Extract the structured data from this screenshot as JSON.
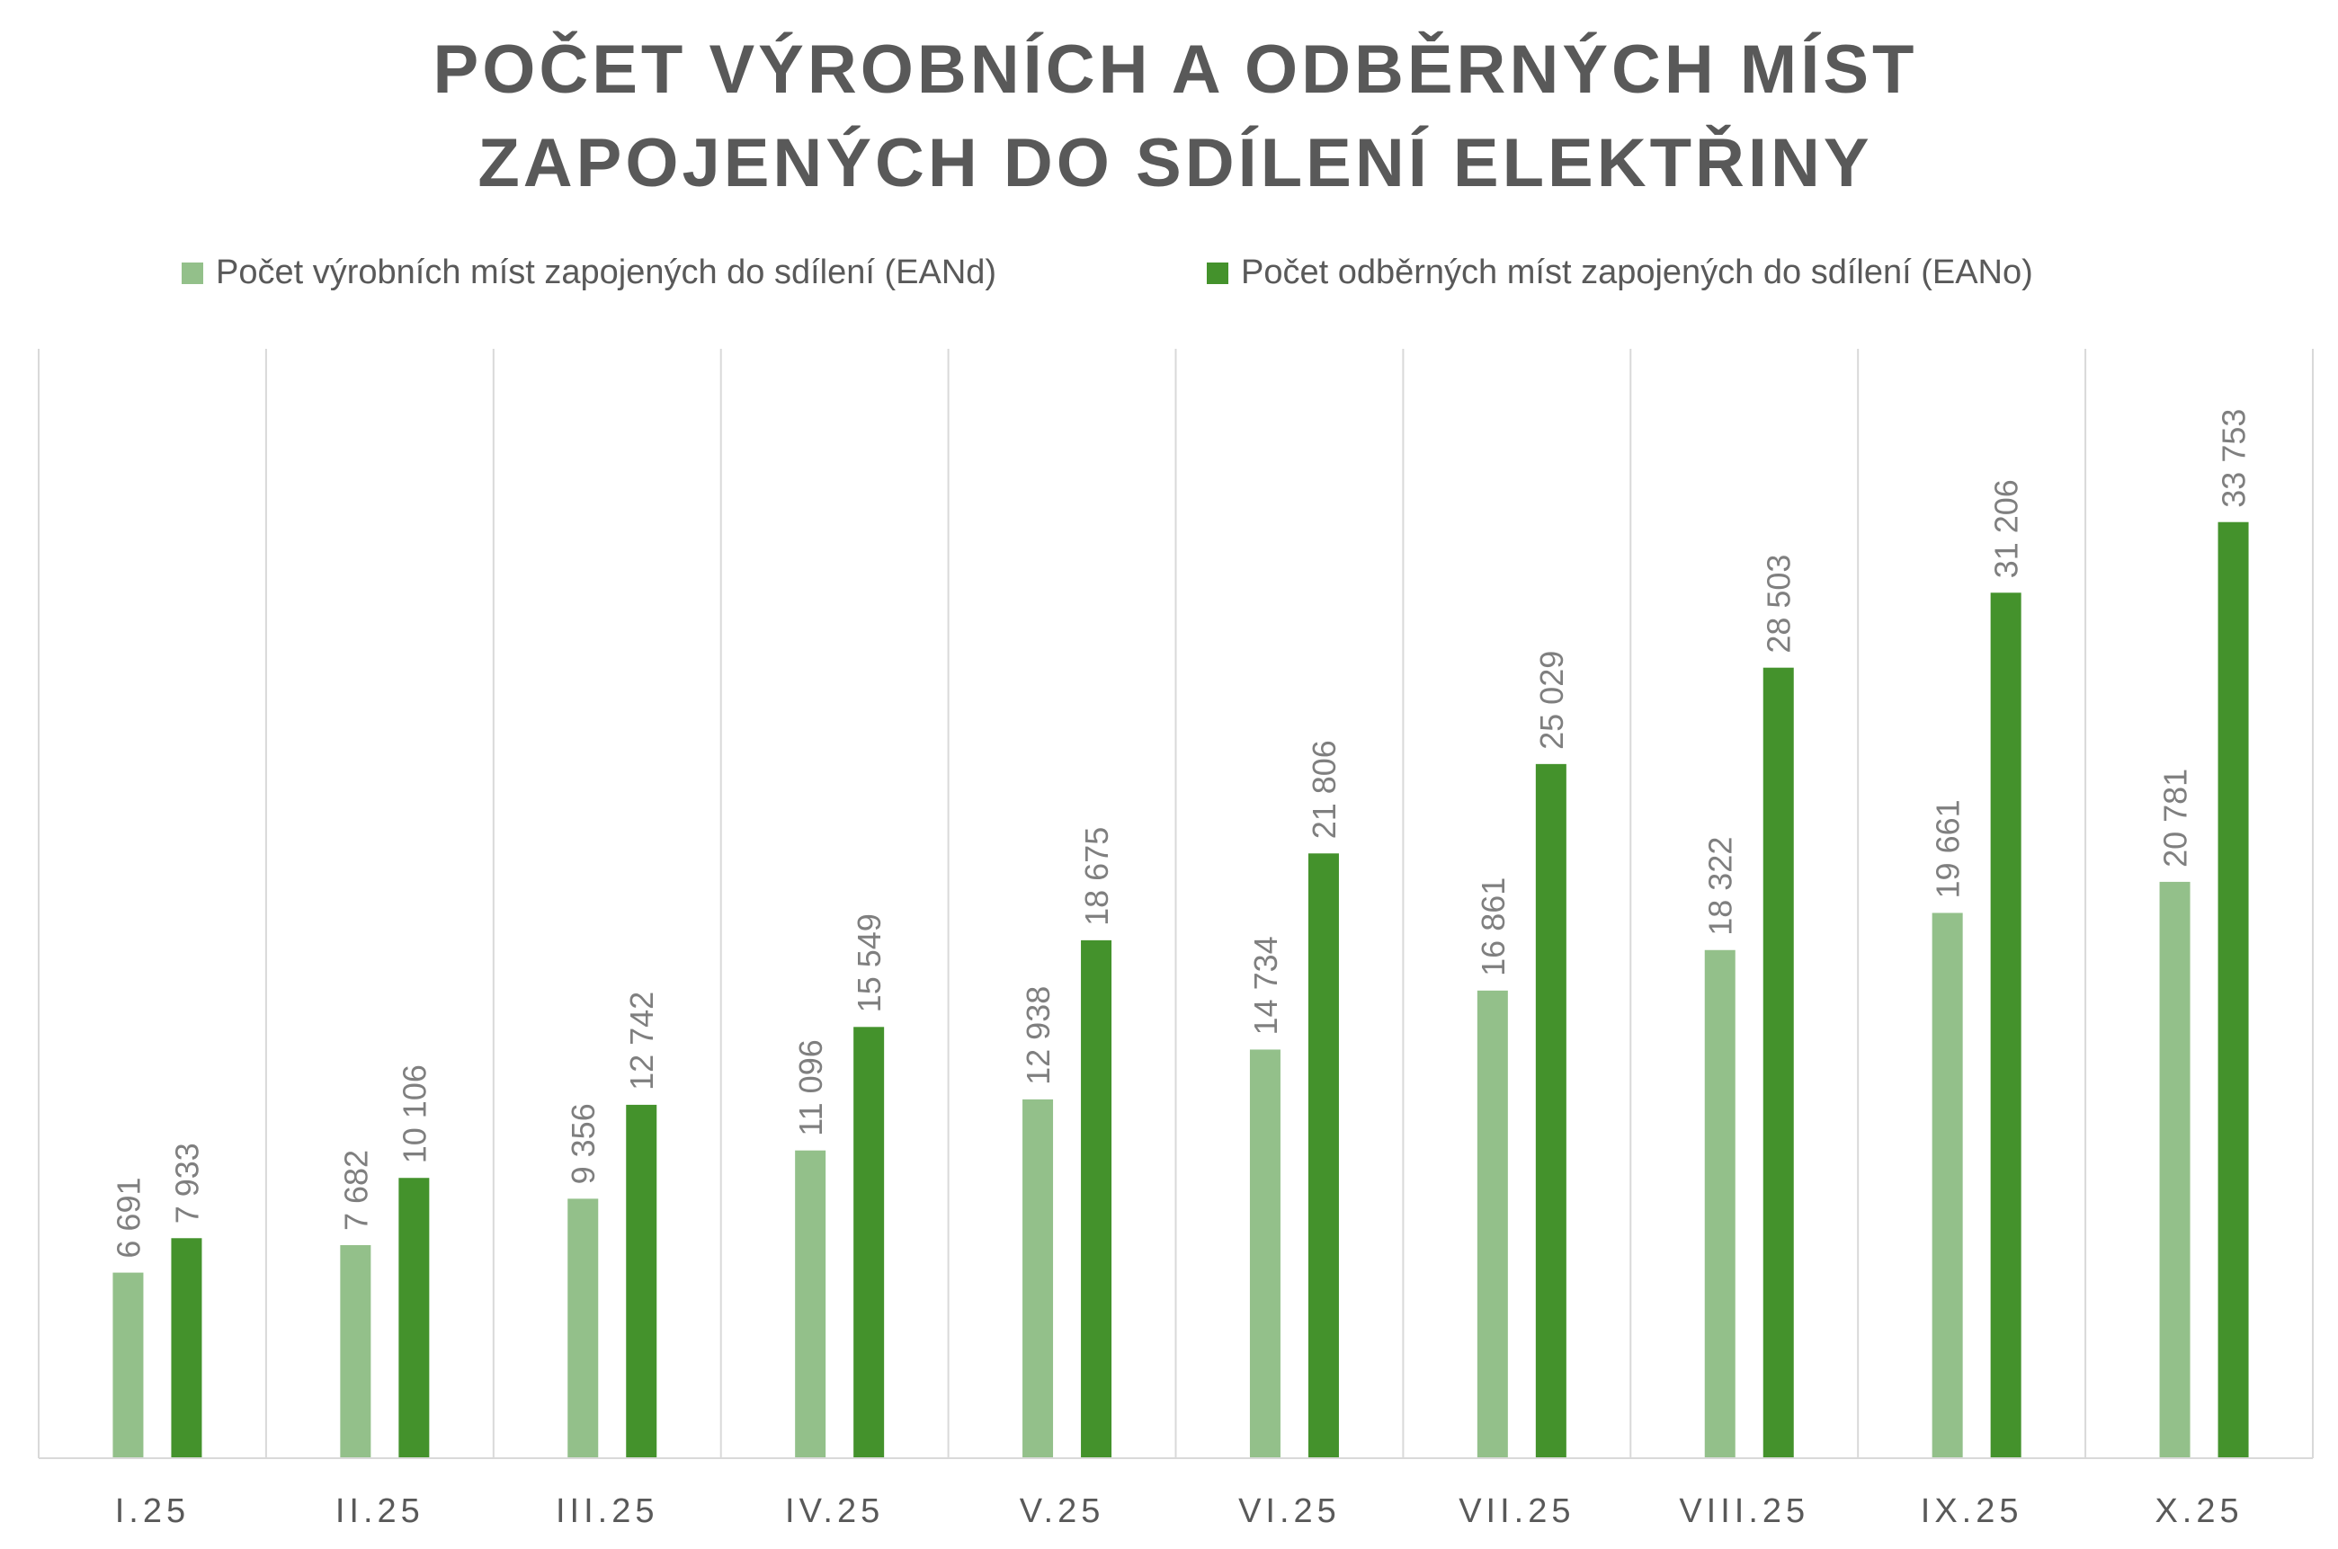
{
  "chart_data": {
    "type": "bar",
    "title_lines": [
      "POČET VÝROBNÍCH A ODBĚRNÝCH MÍST",
      "ZAPOJENÝCH DO SDÍLENÍ ELEKTŘINY"
    ],
    "categories": [
      "I.25",
      "II.25",
      "III.25",
      "IV.25",
      "V.25",
      "VI.25",
      "VII.25",
      "VIII.25",
      "IX.25",
      "X.25"
    ],
    "series": [
      {
        "name": "Počet výrobních míst zapojených do sdílení (EANd)",
        "color": "#93c08a",
        "values": [
          6691,
          7682,
          9356,
          11096,
          12938,
          14734,
          16861,
          18322,
          19661,
          20781
        ],
        "labels": [
          "6 691",
          "7 682",
          "9 356",
          "11 096",
          "12 938",
          "14 734",
          "16 861",
          "18 322",
          "19 661",
          "20 781"
        ]
      },
      {
        "name": "Počet odběrných míst zapojených do sdílení (EANo)",
        "color": "#44922c",
        "values": [
          7933,
          10106,
          12742,
          15549,
          18675,
          21806,
          25029,
          28503,
          31206,
          33753
        ],
        "labels": [
          "7 933",
          "10 106",
          "12 742",
          "15 549",
          "18 675",
          "21 806",
          "25 029",
          "28 503",
          "31 206",
          "33 753"
        ]
      }
    ],
    "ylim": [
      0,
      40000
    ],
    "legend_position": "top",
    "grid": "vertical category separators",
    "axis_color": "#d9d9d9",
    "text_color": "#595959",
    "label_color": "#7f7f7f"
  }
}
